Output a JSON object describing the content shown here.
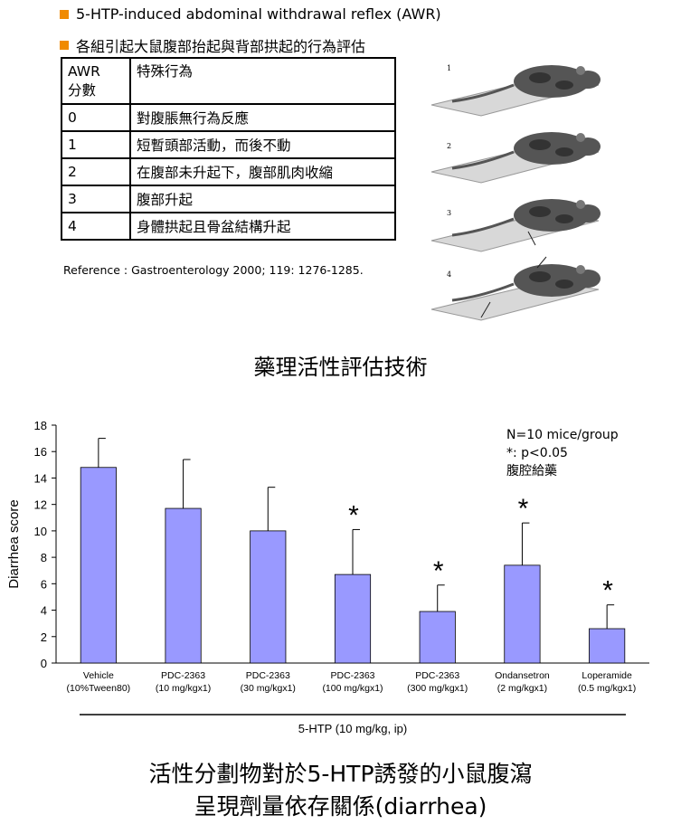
{
  "bullets": [
    {
      "text": "5-HTP-induced abdominal withdrawal reflex (AWR)"
    },
    {
      "text": "各組引起大鼠腹部抬起與背部拱起的行為評估"
    }
  ],
  "colors": {
    "bullet": "#f08a00",
    "bar": "#9999ff",
    "bar_edge": "#000000"
  },
  "awr_table": {
    "header": {
      "col1_line1": "AWR",
      "col1_line2": "分數",
      "col2": "特殊行為"
    },
    "rows": [
      {
        "score": "0",
        "behavior": "對腹脹無行為反應"
      },
      {
        "score": "1",
        "behavior": "短暫頭部活動，而後不動"
      },
      {
        "score": "2",
        "behavior": "在腹部未升起下，腹部肌肉收縮"
      },
      {
        "score": "3",
        "behavior": "腹部升起"
      },
      {
        "score": "4",
        "behavior": "身體拱起且骨盆結構升起"
      }
    ]
  },
  "reference": "Reference : Gastroenterology 2000; 119: 1276-1285.",
  "rat_figure": {
    "panel_labels": [
      "1",
      "2",
      "3",
      "4"
    ]
  },
  "section_title": "藥理活性評估技術",
  "chart_data": {
    "type": "bar",
    "ylabel": "Diarrhea score",
    "xlabel": "5-HTP (10 mg/kg, ip)",
    "ylim": [
      0,
      18
    ],
    "yticks": [
      "0",
      "2",
      "4",
      "6",
      "8",
      "10",
      "12",
      "14",
      "16",
      "18"
    ],
    "categories": [
      {
        "line1": "Vehicle",
        "line2": "(10%Tween80)"
      },
      {
        "line1": "PDC-2363",
        "line2": "(10 mg/kgx1)"
      },
      {
        "line1": "PDC-2363",
        "line2": "(30 mg/kgx1)"
      },
      {
        "line1": "PDC-2363",
        "line2": "(100 mg/kgx1)"
      },
      {
        "line1": "PDC-2363",
        "line2": "(300 mg/kgx1)"
      },
      {
        "line1": "Ondansetron",
        "line2": "(2 mg/kgx1)"
      },
      {
        "line1": "Loperamide",
        "line2": "(0.5 mg/kgx1)"
      }
    ],
    "values": [
      14.8,
      11.7,
      10.0,
      6.7,
      3.9,
      7.4,
      2.6
    ],
    "errors": [
      2.2,
      3.7,
      3.3,
      3.4,
      2.0,
      3.2,
      1.8
    ],
    "significance": [
      "",
      "",
      "",
      "*",
      "*",
      "*",
      "*"
    ],
    "legend_lines": [
      "N=10 mice/group",
      "*: p<0.05",
      "腹腔給藥"
    ],
    "legend_placement": "top-right"
  },
  "caption": {
    "line1": "活性分劃物對於5-HTP誘發的小鼠腹瀉",
    "line2": "呈現劑量依存關係(diarrhea)"
  }
}
